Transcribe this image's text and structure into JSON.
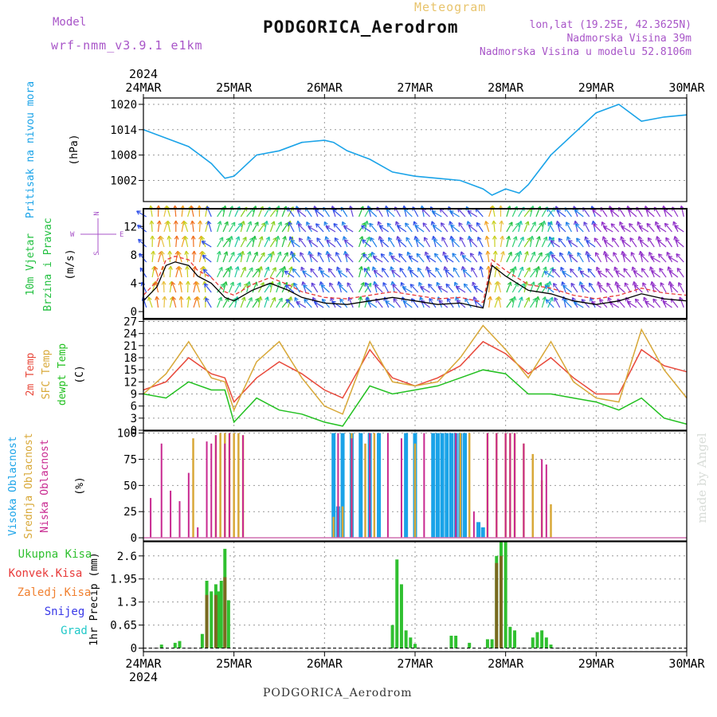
{
  "header": {
    "model_label": "Model",
    "model_name": "wrf-nmm_v3.9.1 e1km",
    "station": "PODGORICA_Aerodrom",
    "meteogram": "Meteogram",
    "coords": "lon,lat (19.25E, 42.3625N)",
    "elevation": "Nadmorska Visina 39m",
    "elevation_model": "Nadmorska Visina u modelu 52.8106m",
    "footer": "PODGORICA_Aerodrom",
    "watermark": "made by Angel"
  },
  "colors": {
    "pressure": "#1aa3e8",
    "wind_label": "#22c040",
    "temp2m": "#e8483a",
    "sfc_temp": "#d8a838",
    "dewpt": "#22c020",
    "cloud_high": "#1aa3e8",
    "cloud_mid": "#d8a838",
    "cloud_low": "#c82890",
    "precip_total": "#30c030",
    "precip_conv": "#e83a3a",
    "precip_frz": "#f08030",
    "precip_snow": "#3a3ae8",
    "precip_hail": "#20c8c8"
  },
  "chart_data": [
    {
      "id": "pressure",
      "type": "line",
      "ylabel_main": "Pritisak na nivou mora",
      "ylabel_unit": "(hPa)",
      "yticks": [
        1002,
        1008,
        1014,
        1020
      ],
      "ylim": [
        997,
        1021.5
      ],
      "x_days": [
        0,
        0.25,
        0.5,
        0.75,
        0.9,
        1.0,
        1.25,
        1.5,
        1.75,
        2.0,
        2.1,
        2.25,
        2.5,
        2.75,
        3.0,
        3.25,
        3.5,
        3.75,
        3.85,
        4.0,
        4.15,
        4.25,
        4.5,
        4.75,
        5.0,
        5.25,
        5.5,
        5.75,
        6.0
      ],
      "values": [
        1014,
        1012,
        1010,
        1006,
        1002.5,
        1003,
        1008,
        1009,
        1011,
        1011.5,
        1011,
        1009,
        1007,
        1004,
        1003,
        1002.5,
        1002,
        1000,
        998.5,
        1000,
        999,
        1001,
        1008,
        1013,
        1018,
        1020,
        1016,
        1017,
        1017.5
      ]
    },
    {
      "id": "wind",
      "type": "line",
      "ylabel_main": "10m Vjetar",
      "ylabel_sub": "Brzina i Pravac",
      "ylabel_unit": "(m/s)",
      "compass": {
        "n": "N",
        "e": "E",
        "w": "W",
        "s": "S"
      },
      "yticks": [
        0,
        4,
        8,
        12
      ],
      "ylim": [
        -1,
        14.5
      ],
      "series": [
        {
          "name": "speed",
          "x_days": [
            0,
            0.15,
            0.25,
            0.35,
            0.5,
            0.6,
            0.75,
            0.9,
            1.0,
            1.2,
            1.4,
            1.6,
            1.75,
            2.0,
            2.25,
            2.5,
            2.75,
            3.0,
            3.25,
            3.5,
            3.75,
            3.85,
            4.0,
            4.25,
            4.5,
            4.75,
            5.0,
            5.25,
            5.5,
            5.75,
            6.0
          ],
          "values": [
            1.5,
            3.5,
            6.5,
            7,
            6.5,
            5,
            4,
            2,
            1.5,
            3,
            4,
            3,
            2,
            1.2,
            1,
            1.5,
            2,
            1.5,
            1,
            1.2,
            0.5,
            6.5,
            5,
            3,
            2.5,
            1.5,
            1,
            1.5,
            2.5,
            1.8,
            1.5
          ]
        }
      ]
    },
    {
      "id": "temperature",
      "type": "line",
      "ylabel_lines": [
        "2m Temp",
        "SFC Temp",
        "dewpt Temp"
      ],
      "ylabel_unit": "(C)",
      "yticks": [
        0,
        3,
        6,
        9,
        12,
        15,
        18,
        21,
        24,
        27
      ],
      "ylim": [
        0,
        27.5
      ],
      "x_days": [
        0,
        0.25,
        0.5,
        0.75,
        0.9,
        1.0,
        1.25,
        1.5,
        1.75,
        2.0,
        2.2,
        2.5,
        2.75,
        3.0,
        3.25,
        3.5,
        3.75,
        4.0,
        4.25,
        4.5,
        4.75,
        5.0,
        5.25,
        5.5,
        5.75,
        6.0
      ],
      "series": [
        {
          "name": "2m Temp",
          "values": [
            10,
            12,
            18,
            14,
            13,
            7,
            13,
            17,
            14,
            10,
            8,
            20,
            13,
            11,
            13,
            16,
            22,
            19,
            14,
            18,
            13,
            9,
            9,
            20,
            16,
            14.5
          ]
        },
        {
          "name": "SFC Temp",
          "values": [
            9,
            14,
            22,
            13,
            12,
            5,
            17,
            22,
            13,
            6,
            4,
            22,
            12,
            11,
            12,
            18,
            26,
            20,
            13,
            22,
            12,
            8,
            7,
            25,
            15,
            8
          ]
        },
        {
          "name": "dewpt Temp",
          "values": [
            9,
            8,
            12,
            10,
            10,
            2,
            8,
            5,
            4,
            2,
            1,
            11,
            9,
            10,
            11,
            13,
            15,
            14,
            9,
            9,
            8,
            7,
            5,
            8,
            3,
            1.5
          ]
        }
      ]
    },
    {
      "id": "cloud",
      "type": "bar",
      "ylabel_lines": [
        "Visoka Oblacnost",
        "Srednja Oblacnost",
        "Niska Oblacnost"
      ],
      "ylabel_unit": "(%)",
      "yticks": [
        0,
        25,
        50,
        75,
        100
      ],
      "ylim": [
        -3,
        102
      ],
      "series": [
        {
          "name": "Visoka Oblacnost",
          "x_days": [
            2.1,
            2.15,
            2.2,
            2.3,
            2.4,
            2.5,
            2.6,
            2.9,
            3.0,
            3.2,
            3.25,
            3.3,
            3.35,
            3.4,
            3.45,
            3.5,
            3.55,
            3.7,
            3.75
          ],
          "values": [
            100,
            30,
            100,
            100,
            100,
            100,
            100,
            100,
            100,
            100,
            100,
            100,
            100,
            100,
            100,
            100,
            100,
            15,
            10
          ]
        },
        {
          "name": "Srednja Oblacnost",
          "x_days": [
            0.55,
            0.8,
            0.85,
            0.9,
            0.95,
            1.0,
            1.05,
            1.1,
            2.1,
            2.2,
            2.3,
            2.45,
            2.55,
            3.0,
            3.5,
            3.6,
            3.8,
            3.9,
            4.0,
            4.05,
            4.1,
            4.2,
            4.3,
            4.4,
            4.5
          ],
          "values": [
            95,
            98,
            100,
            100,
            100,
            100,
            100,
            98,
            20,
            30,
            100,
            90,
            100,
            90,
            100,
            100,
            100,
            100,
            100,
            100,
            100,
            90,
            80,
            55,
            32
          ]
        },
        {
          "name": "Niska Oblacnost",
          "x_days": [
            0.08,
            0.2,
            0.3,
            0.4,
            0.5,
            0.6,
            0.7,
            0.75,
            0.8,
            0.9,
            0.95,
            1.1,
            2.15,
            2.3,
            2.5,
            2.7,
            2.85,
            3.1,
            3.45,
            3.65,
            3.8,
            3.9,
            4.0,
            4.05,
            4.1,
            4.2,
            4.4,
            4.45
          ],
          "values": [
            38,
            90,
            45,
            35,
            62,
            10,
            92,
            90,
            98,
            90,
            100,
            98,
            100,
            95,
            100,
            100,
            95,
            100,
            100,
            25,
            100,
            100,
            100,
            100,
            100,
            90,
            75,
            70
          ]
        }
      ]
    },
    {
      "id": "precip",
      "type": "bar",
      "legend": [
        "Ukupna Kisa",
        "Konvek.Kisa",
        "Zaledj.Kisa",
        "Snijeg",
        "Grad"
      ],
      "ylabel_unit": "1hr Precip (mm)",
      "yticks": [
        0,
        0.65,
        1.3,
        1.95,
        2.6
      ],
      "ytick_labels": [
        "0",
        "0.65",
        "1.3",
        "1.95",
        "2.6"
      ],
      "ylim": [
        -0.1,
        3.0
      ],
      "series": [
        {
          "name": "Ukupna Kisa",
          "x_days": [
            0.2,
            0.35,
            0.4,
            0.65,
            0.7,
            0.75,
            0.8,
            0.83,
            0.86,
            0.9,
            0.94,
            2.75,
            2.8,
            2.85,
            2.9,
            2.95,
            3.0,
            3.4,
            3.45,
            3.6,
            3.8,
            3.85,
            3.9,
            3.95,
            4.0,
            4.05,
            4.1,
            4.3,
            4.35,
            4.4,
            4.45,
            4.5
          ],
          "values": [
            0.1,
            0.15,
            0.2,
            0.4,
            1.9,
            1.6,
            1.8,
            1.6,
            1.9,
            2.8,
            1.35,
            0.65,
            2.5,
            1.8,
            0.5,
            0.3,
            0.12,
            0.35,
            0.35,
            0.15,
            0.25,
            0.25,
            2.6,
            3.0,
            3.0,
            0.6,
            0.5,
            0.3,
            0.45,
            0.5,
            0.3,
            0.1
          ]
        },
        {
          "name": "Konvek.Kisa",
          "x_days": [
            0.7,
            0.8,
            0.9,
            3.9,
            3.95
          ],
          "values": [
            1.5,
            1.5,
            2.0,
            2.4,
            2.6
          ]
        }
      ]
    }
  ],
  "x_axis": {
    "labels": [
      "24MAR",
      "25MAR",
      "26MAR",
      "27MAR",
      "28MAR",
      "29MAR",
      "30MAR"
    ],
    "year": "2024"
  }
}
